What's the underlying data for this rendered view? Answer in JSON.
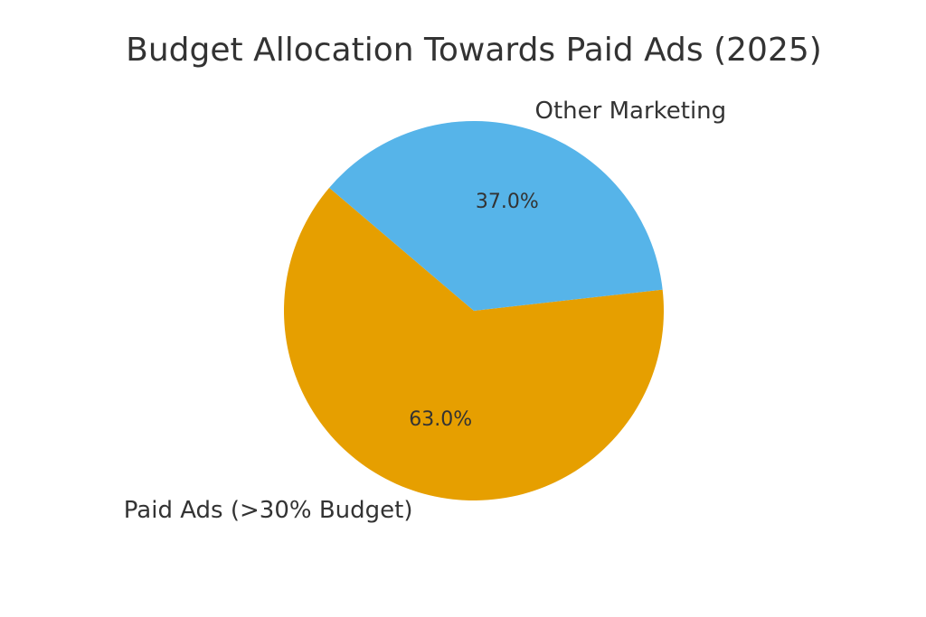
{
  "chart_data": {
    "type": "pie",
    "title": "Budget Allocation Towards Paid Ads (2025)",
    "slices": [
      {
        "label": "Paid Ads (>30% Budget)",
        "value": 63.0,
        "display": "63.0%",
        "color": "#E69F00"
      },
      {
        "label": "Other Marketing",
        "value": 37.0,
        "display": "37.0%",
        "color": "#56B4E9"
      }
    ],
    "legend": "none"
  }
}
